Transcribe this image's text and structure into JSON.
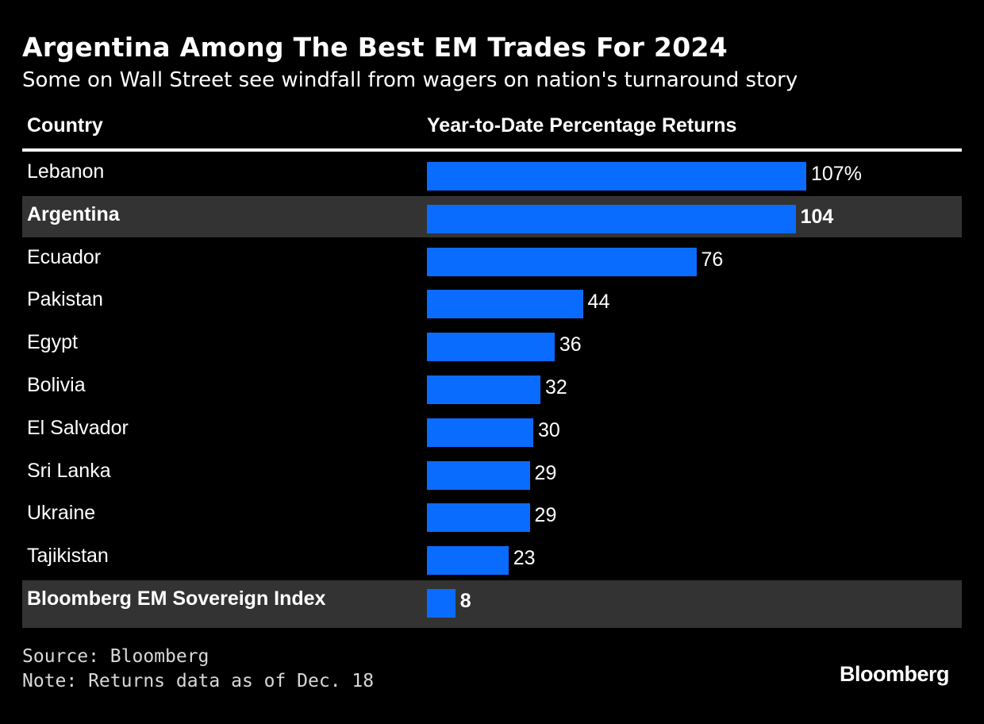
{
  "header": {
    "title": "Argentina Among The Best EM Trades For 2024",
    "subtitle": "Some on Wall Street see windfall from wagers on nation's turnaround story"
  },
  "columns": {
    "country": "Country",
    "returns": "Year-to-Date Percentage Returns"
  },
  "colors": {
    "bar": "#0a6cff",
    "highlight_row": "#333333",
    "background": "#000000"
  },
  "chart_data": {
    "type": "bar",
    "orientation": "horizontal",
    "title": "Argentina Among The Best EM Trades For 2024",
    "subtitle": "Some on Wall Street see windfall from wagers on nation's turnaround story",
    "xlabel": "Year-to-Date Percentage Returns",
    "ylabel": "Country",
    "xlim": [
      0,
      107
    ],
    "categories": [
      "Lebanon",
      "Argentina",
      "Ecuador",
      "Pakistan",
      "Egypt",
      "Bolivia",
      "El Salvador",
      "Sri Lanka",
      "Ukraine",
      "Tajikistan",
      "Bloomberg EM Sovereign Index"
    ],
    "values": [
      107,
      104,
      76,
      44,
      36,
      32,
      30,
      29,
      29,
      23,
      8
    ],
    "value_labels": [
      "107%",
      "104",
      "76",
      "44",
      "36",
      "32",
      "30",
      "29",
      "29",
      "23",
      "8"
    ],
    "highlighted": [
      "Argentina",
      "Bloomberg EM Sovereign Index"
    ]
  },
  "footer": {
    "source": "Source: Bloomberg",
    "note": "Note: Returns data as of Dec. 18",
    "brand": "Bloomberg"
  }
}
